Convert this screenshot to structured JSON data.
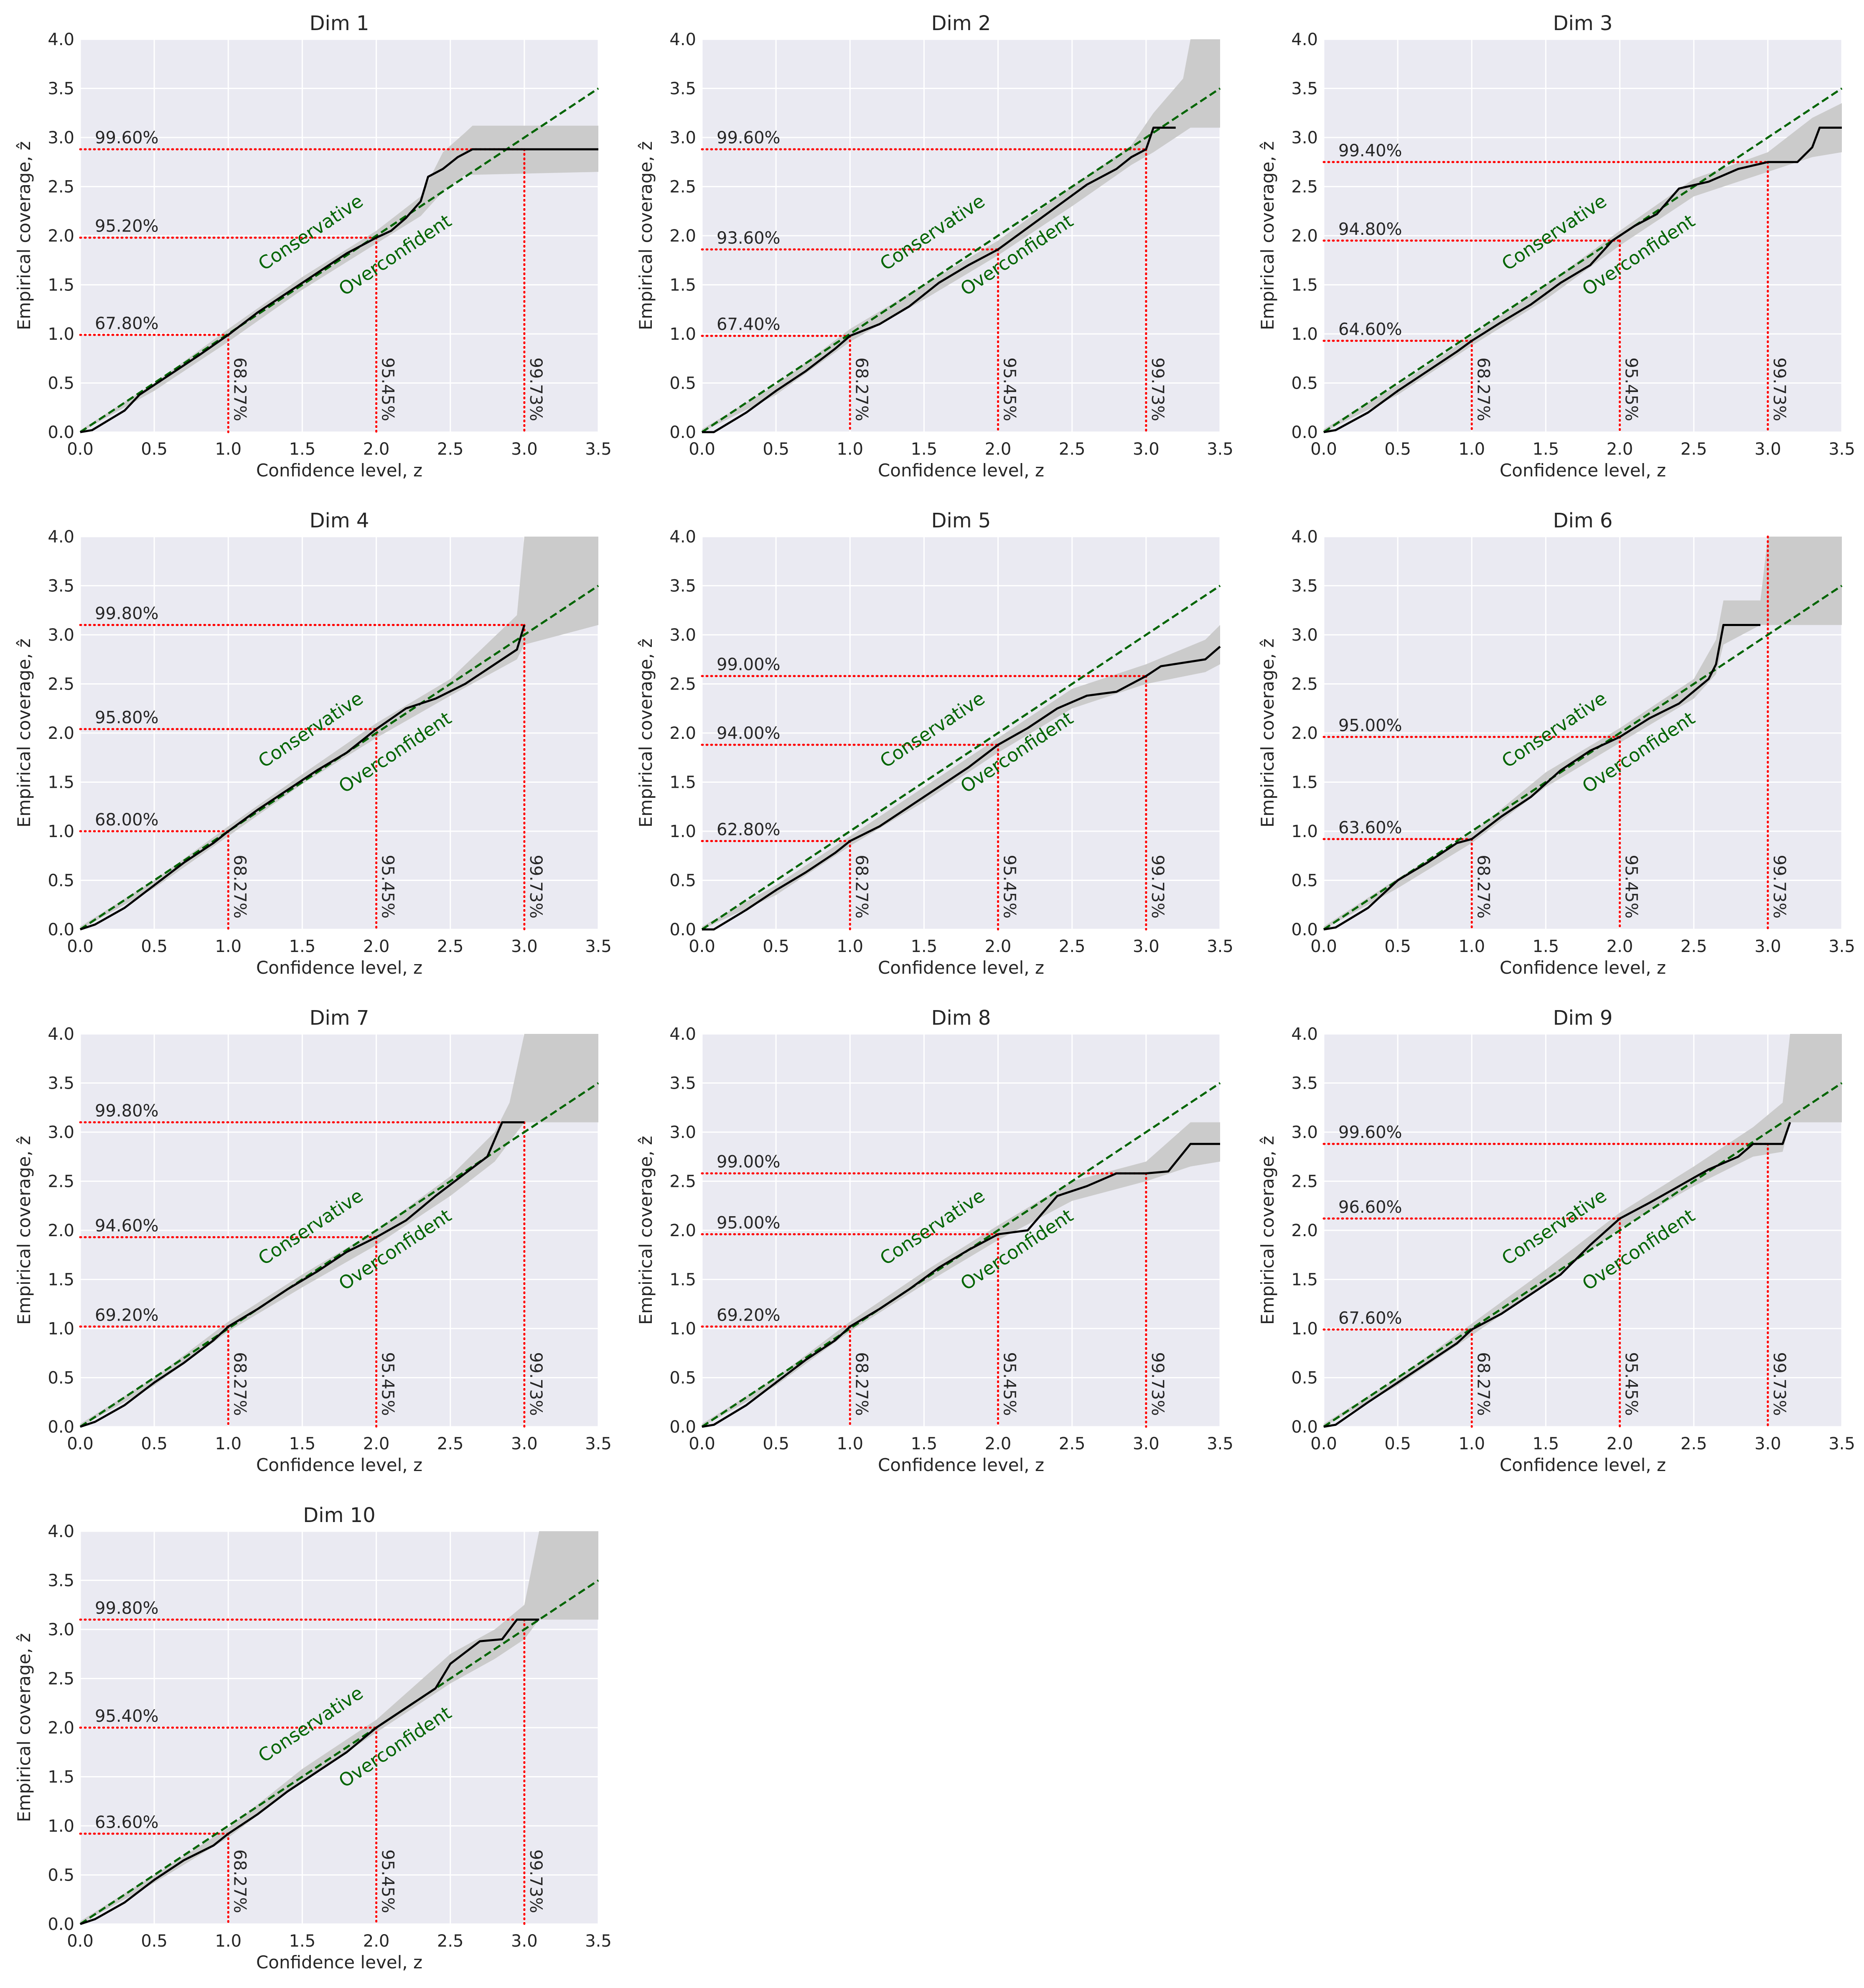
{
  "figure": {
    "xlabel": "Confidence level, z",
    "ylabel": "Empirical coverage, ẑ",
    "xlim": [
      0,
      3.5
    ],
    "ylim": [
      0,
      4
    ],
    "xticks": [
      "0.0",
      "0.5",
      "1.0",
      "1.5",
      "2.0",
      "2.5",
      "3.0",
      "3.5"
    ],
    "yticks": [
      "0.0",
      "0.5",
      "1.0",
      "1.5",
      "2.0",
      "2.5",
      "3.0",
      "3.5",
      "4.0"
    ],
    "reference_z": [
      1,
      2,
      3
    ],
    "reference_labels": [
      "68.27%",
      "95.45%",
      "99.73%"
    ],
    "region_labels": {
      "above": "Conservative",
      "below": "Overconfident"
    },
    "colors": {
      "panel_bg": "#eaeaf2",
      "grid": "#ffffff",
      "band": "#cbcbcb",
      "curve": "#000000",
      "diagonal": "#006400",
      "reference": "#ff0000",
      "annotation_text": "#262626",
      "region_text": "#006400"
    }
  },
  "chart_data": [
    {
      "type": "line",
      "title": "Dim 1",
      "coverage_labels": [
        "67.80%",
        "95.20%",
        "99.60%"
      ],
      "coverage_z": [
        0.99,
        1.98,
        2.88
      ],
      "curve": [
        [
          0,
          0
        ],
        [
          0.08,
          0.02
        ],
        [
          0.3,
          0.22
        ],
        [
          0.4,
          0.38
        ],
        [
          0.6,
          0.58
        ],
        [
          0.8,
          0.78
        ],
        [
          1.0,
          0.99
        ],
        [
          1.2,
          1.22
        ],
        [
          1.4,
          1.42
        ],
        [
          1.6,
          1.62
        ],
        [
          1.8,
          1.82
        ],
        [
          2.0,
          1.98
        ],
        [
          2.1,
          2.05
        ],
        [
          2.2,
          2.18
        ],
        [
          2.3,
          2.35
        ],
        [
          2.35,
          2.6
        ],
        [
          2.45,
          2.68
        ],
        [
          2.55,
          2.8
        ],
        [
          2.65,
          2.88
        ],
        [
          3.5,
          2.88
        ]
      ],
      "band": [
        [
          0,
          0,
          0.02
        ],
        [
          0.5,
          0.42,
          0.5
        ],
        [
          1.0,
          0.92,
          1.05
        ],
        [
          1.5,
          1.45,
          1.58
        ],
        [
          2.0,
          1.92,
          2.05
        ],
        [
          2.3,
          2.2,
          2.4
        ],
        [
          2.45,
          2.45,
          2.85
        ],
        [
          2.6,
          2.62,
          3.05
        ],
        [
          2.65,
          2.62,
          3.12
        ],
        [
          3.5,
          2.65,
          3.12
        ]
      ]
    },
    {
      "type": "line",
      "title": "Dim 2",
      "coverage_labels": [
        "67.40%",
        "93.60%",
        "99.60%"
      ],
      "coverage_z": [
        0.98,
        1.86,
        2.88
      ],
      "curve": [
        [
          0,
          0
        ],
        [
          0.08,
          0.0
        ],
        [
          0.3,
          0.2
        ],
        [
          0.5,
          0.42
        ],
        [
          0.7,
          0.62
        ],
        [
          0.9,
          0.85
        ],
        [
          1.0,
          0.98
        ],
        [
          1.2,
          1.1
        ],
        [
          1.4,
          1.28
        ],
        [
          1.6,
          1.52
        ],
        [
          1.8,
          1.7
        ],
        [
          2.0,
          1.86
        ],
        [
          2.2,
          2.08
        ],
        [
          2.4,
          2.3
        ],
        [
          2.6,
          2.52
        ],
        [
          2.8,
          2.68
        ],
        [
          2.9,
          2.8
        ],
        [
          3.0,
          2.88
        ],
        [
          3.05,
          3.1
        ],
        [
          3.2,
          3.1
        ]
      ],
      "band": [
        [
          0,
          0,
          0.03
        ],
        [
          0.5,
          0.38,
          0.48
        ],
        [
          1.0,
          0.92,
          1.05
        ],
        [
          1.5,
          1.35,
          1.5
        ],
        [
          2.0,
          1.8,
          1.95
        ],
        [
          2.5,
          2.3,
          2.5
        ],
        [
          2.9,
          2.72,
          2.92
        ],
        [
          3.05,
          2.85,
          3.25
        ],
        [
          3.25,
          3.05,
          3.6
        ],
        [
          3.3,
          3.1,
          4.0
        ],
        [
          3.5,
          3.1,
          4.0
        ]
      ]
    },
    {
      "type": "line",
      "title": "Dim 3",
      "coverage_labels": [
        "64.60%",
        "94.80%",
        "99.40%"
      ],
      "coverage_z": [
        0.93,
        1.95,
        2.75
      ],
      "curve": [
        [
          0,
          0
        ],
        [
          0.08,
          0.02
        ],
        [
          0.3,
          0.2
        ],
        [
          0.5,
          0.42
        ],
        [
          0.7,
          0.62
        ],
        [
          0.9,
          0.82
        ],
        [
          1.0,
          0.93
        ],
        [
          1.2,
          1.12
        ],
        [
          1.4,
          1.3
        ],
        [
          1.6,
          1.52
        ],
        [
          1.8,
          1.7
        ],
        [
          1.95,
          1.95
        ],
        [
          2.1,
          2.1
        ],
        [
          2.25,
          2.22
        ],
        [
          2.4,
          2.48
        ],
        [
          2.6,
          2.55
        ],
        [
          2.8,
          2.68
        ],
        [
          3.0,
          2.75
        ],
        [
          3.2,
          2.75
        ],
        [
          3.3,
          2.9
        ],
        [
          3.35,
          3.1
        ],
        [
          3.5,
          3.1
        ]
      ],
      "band": [
        [
          0,
          0,
          0.03
        ],
        [
          0.5,
          0.38,
          0.48
        ],
        [
          1.0,
          0.88,
          0.98
        ],
        [
          1.5,
          1.35,
          1.5
        ],
        [
          2.0,
          1.9,
          2.05
        ],
        [
          2.5,
          2.4,
          2.58
        ],
        [
          3.0,
          2.65,
          2.85
        ],
        [
          3.3,
          2.8,
          3.2
        ],
        [
          3.5,
          2.85,
          3.35
        ]
      ]
    },
    {
      "type": "line",
      "title": "Dim 4",
      "coverage_labels": [
        "68.00%",
        "95.80%",
        "99.80%"
      ],
      "coverage_z": [
        1.0,
        2.04,
        3.1
      ],
      "curve": [
        [
          0,
          0
        ],
        [
          0.1,
          0.05
        ],
        [
          0.3,
          0.22
        ],
        [
          0.5,
          0.45
        ],
        [
          0.7,
          0.68
        ],
        [
          0.9,
          0.88
        ],
        [
          1.0,
          1.0
        ],
        [
          1.2,
          1.22
        ],
        [
          1.4,
          1.42
        ],
        [
          1.6,
          1.62
        ],
        [
          1.8,
          1.8
        ],
        [
          2.0,
          2.04
        ],
        [
          2.2,
          2.25
        ],
        [
          2.4,
          2.35
        ],
        [
          2.6,
          2.5
        ],
        [
          2.8,
          2.7
        ],
        [
          2.95,
          2.85
        ],
        [
          3.0,
          3.1
        ]
      ],
      "band": [
        [
          0,
          0,
          0.03
        ],
        [
          0.5,
          0.42,
          0.5
        ],
        [
          1.0,
          0.95,
          1.05
        ],
        [
          1.5,
          1.48,
          1.58
        ],
        [
          2.0,
          1.95,
          2.1
        ],
        [
          2.5,
          2.38,
          2.55
        ],
        [
          2.95,
          2.75,
          3.2
        ],
        [
          3.0,
          2.9,
          4.0
        ],
        [
          3.5,
          3.1,
          4.0
        ]
      ]
    },
    {
      "type": "line",
      "title": "Dim 5",
      "coverage_labels": [
        "62.80%",
        "94.00%",
        "99.00%"
      ],
      "coverage_z": [
        0.9,
        1.88,
        2.58
      ],
      "curve": [
        [
          0,
          0
        ],
        [
          0.08,
          0.0
        ],
        [
          0.3,
          0.2
        ],
        [
          0.5,
          0.4
        ],
        [
          0.7,
          0.58
        ],
        [
          0.9,
          0.78
        ],
        [
          1.0,
          0.9
        ],
        [
          1.2,
          1.05
        ],
        [
          1.4,
          1.25
        ],
        [
          1.6,
          1.45
        ],
        [
          1.8,
          1.65
        ],
        [
          2.0,
          1.88
        ],
        [
          2.2,
          2.05
        ],
        [
          2.4,
          2.25
        ],
        [
          2.6,
          2.38
        ],
        [
          2.8,
          2.42
        ],
        [
          3.0,
          2.58
        ],
        [
          3.1,
          2.68
        ],
        [
          3.4,
          2.75
        ],
        [
          3.5,
          2.88
        ]
      ],
      "band": [
        [
          0,
          0,
          0.03
        ],
        [
          0.5,
          0.35,
          0.45
        ],
        [
          1.0,
          0.85,
          0.95
        ],
        [
          1.5,
          1.3,
          1.45
        ],
        [
          2.0,
          1.8,
          1.95
        ],
        [
          2.5,
          2.25,
          2.45
        ],
        [
          3.0,
          2.5,
          2.7
        ],
        [
          3.4,
          2.62,
          2.95
        ],
        [
          3.5,
          2.7,
          3.1
        ]
      ]
    },
    {
      "type": "line",
      "title": "Dim 6",
      "coverage_labels": [
        "63.60%",
        "95.00%"
      ],
      "coverage_z": [
        0.92,
        1.96
      ],
      "curve": [
        [
          0,
          0
        ],
        [
          0.08,
          0.02
        ],
        [
          0.3,
          0.22
        ],
        [
          0.5,
          0.5
        ],
        [
          0.7,
          0.68
        ],
        [
          0.9,
          0.88
        ],
        [
          1.0,
          0.92
        ],
        [
          1.2,
          1.15
        ],
        [
          1.4,
          1.35
        ],
        [
          1.6,
          1.62
        ],
        [
          1.8,
          1.82
        ],
        [
          2.0,
          1.96
        ],
        [
          2.2,
          2.15
        ],
        [
          2.4,
          2.3
        ],
        [
          2.6,
          2.55
        ],
        [
          2.65,
          2.7
        ],
        [
          2.7,
          3.1
        ],
        [
          2.95,
          3.1
        ]
      ],
      "band": [
        [
          0,
          0,
          0.03
        ],
        [
          0.5,
          0.42,
          0.52
        ],
        [
          1.0,
          0.88,
          0.98
        ],
        [
          1.5,
          1.45,
          1.6
        ],
        [
          2.0,
          1.9,
          2.05
        ],
        [
          2.5,
          2.35,
          2.55
        ],
        [
          2.65,
          2.6,
          2.95
        ],
        [
          2.7,
          2.9,
          3.35
        ],
        [
          2.95,
          3.1,
          3.35
        ],
        [
          3.0,
          3.1,
          4.0
        ],
        [
          3.5,
          3.1,
          4.0
        ]
      ]
    },
    {
      "type": "line",
      "title": "Dim 7",
      "coverage_labels": [
        "69.20%",
        "94.60%",
        "99.80%"
      ],
      "coverage_z": [
        1.02,
        1.93,
        3.1
      ],
      "curve": [
        [
          0,
          0
        ],
        [
          0.1,
          0.05
        ],
        [
          0.3,
          0.22
        ],
        [
          0.5,
          0.45
        ],
        [
          0.7,
          0.65
        ],
        [
          0.9,
          0.88
        ],
        [
          1.0,
          1.02
        ],
        [
          1.2,
          1.2
        ],
        [
          1.4,
          1.4
        ],
        [
          1.6,
          1.58
        ],
        [
          1.8,
          1.78
        ],
        [
          2.0,
          1.93
        ],
        [
          2.2,
          2.1
        ],
        [
          2.4,
          2.35
        ],
        [
          2.6,
          2.58
        ],
        [
          2.75,
          2.75
        ],
        [
          2.85,
          3.1
        ],
        [
          3.0,
          3.1
        ]
      ],
      "band": [
        [
          0,
          0,
          0.03
        ],
        [
          0.5,
          0.42,
          0.5
        ],
        [
          1.0,
          0.97,
          1.07
        ],
        [
          1.5,
          1.42,
          1.55
        ],
        [
          2.0,
          1.85,
          2.0
        ],
        [
          2.5,
          2.35,
          2.55
        ],
        [
          2.8,
          2.7,
          3.0
        ],
        [
          2.9,
          2.9,
          3.3
        ],
        [
          3.0,
          3.1,
          4.0
        ],
        [
          3.5,
          3.1,
          4.0
        ]
      ]
    },
    {
      "type": "line",
      "title": "Dim 8",
      "coverage_labels": [
        "69.20%",
        "95.00%",
        "99.00%"
      ],
      "coverage_z": [
        1.02,
        1.96,
        2.58
      ],
      "curve": [
        [
          0,
          0
        ],
        [
          0.08,
          0.02
        ],
        [
          0.3,
          0.22
        ],
        [
          0.5,
          0.45
        ],
        [
          0.7,
          0.68
        ],
        [
          0.9,
          0.88
        ],
        [
          1.0,
          1.02
        ],
        [
          1.2,
          1.2
        ],
        [
          1.4,
          1.4
        ],
        [
          1.6,
          1.62
        ],
        [
          1.8,
          1.8
        ],
        [
          2.0,
          1.96
        ],
        [
          2.2,
          2.0
        ],
        [
          2.4,
          2.35
        ],
        [
          2.6,
          2.45
        ],
        [
          2.8,
          2.58
        ],
        [
          3.0,
          2.58
        ],
        [
          3.15,
          2.6
        ],
        [
          3.3,
          2.88
        ],
        [
          3.5,
          2.88
        ]
      ],
      "band": [
        [
          0,
          0,
          0.03
        ],
        [
          0.5,
          0.42,
          0.5
        ],
        [
          1.0,
          0.97,
          1.07
        ],
        [
          1.5,
          1.45,
          1.58
        ],
        [
          2.0,
          1.9,
          2.05
        ],
        [
          2.5,
          2.3,
          2.5
        ],
        [
          3.0,
          2.5,
          2.7
        ],
        [
          3.3,
          2.65,
          3.1
        ],
        [
          3.5,
          2.7,
          3.1
        ]
      ]
    },
    {
      "type": "line",
      "title": "Dim 9",
      "coverage_labels": [
        "67.60%",
        "96.60%",
        "99.60%"
      ],
      "coverage_z": [
        0.99,
        2.12,
        2.88
      ],
      "curve": [
        [
          0,
          0
        ],
        [
          0.08,
          0.02
        ],
        [
          0.3,
          0.25
        ],
        [
          0.5,
          0.45
        ],
        [
          0.7,
          0.65
        ],
        [
          0.9,
          0.85
        ],
        [
          1.0,
          0.99
        ],
        [
          1.2,
          1.15
        ],
        [
          1.4,
          1.35
        ],
        [
          1.6,
          1.55
        ],
        [
          1.8,
          1.85
        ],
        [
          2.0,
          2.12
        ],
        [
          2.2,
          2.28
        ],
        [
          2.4,
          2.45
        ],
        [
          2.6,
          2.62
        ],
        [
          2.8,
          2.75
        ],
        [
          2.9,
          2.88
        ],
        [
          3.1,
          2.88
        ],
        [
          3.15,
          3.1
        ]
      ],
      "band": [
        [
          0,
          0,
          0.03
        ],
        [
          0.5,
          0.42,
          0.5
        ],
        [
          1.0,
          0.93,
          1.05
        ],
        [
          1.5,
          1.45,
          1.6
        ],
        [
          2.0,
          2.02,
          2.18
        ],
        [
          2.5,
          2.45,
          2.65
        ],
        [
          2.9,
          2.75,
          3.05
        ],
        [
          3.1,
          2.8,
          3.3
        ],
        [
          3.15,
          3.1,
          4.0
        ],
        [
          3.5,
          3.1,
          4.0
        ]
      ]
    },
    {
      "type": "line",
      "title": "Dim 10",
      "coverage_labels": [
        "63.60%",
        "95.40%",
        "99.80%"
      ],
      "coverage_z": [
        0.92,
        2.0,
        3.1
      ],
      "curve": [
        [
          0,
          0
        ],
        [
          0.1,
          0.05
        ],
        [
          0.3,
          0.22
        ],
        [
          0.5,
          0.45
        ],
        [
          0.7,
          0.65
        ],
        [
          0.9,
          0.8
        ],
        [
          1.0,
          0.92
        ],
        [
          1.2,
          1.12
        ],
        [
          1.4,
          1.35
        ],
        [
          1.6,
          1.55
        ],
        [
          1.8,
          1.75
        ],
        [
          2.0,
          2.0
        ],
        [
          2.2,
          2.2
        ],
        [
          2.4,
          2.4
        ],
        [
          2.5,
          2.65
        ],
        [
          2.7,
          2.88
        ],
        [
          2.85,
          2.9
        ],
        [
          2.95,
          3.1
        ],
        [
          3.1,
          3.1
        ]
      ],
      "band": [
        [
          0,
          0,
          0.03
        ],
        [
          0.5,
          0.42,
          0.5
        ],
        [
          1.0,
          0.88,
          0.98
        ],
        [
          1.5,
          1.45,
          1.58
        ],
        [
          2.0,
          1.95,
          2.08
        ],
        [
          2.5,
          2.45,
          2.75
        ],
        [
          2.8,
          2.7,
          3.0
        ],
        [
          3.0,
          2.9,
          3.25
        ],
        [
          3.1,
          3.1,
          4.0
        ],
        [
          3.5,
          3.1,
          4.0
        ]
      ]
    }
  ]
}
